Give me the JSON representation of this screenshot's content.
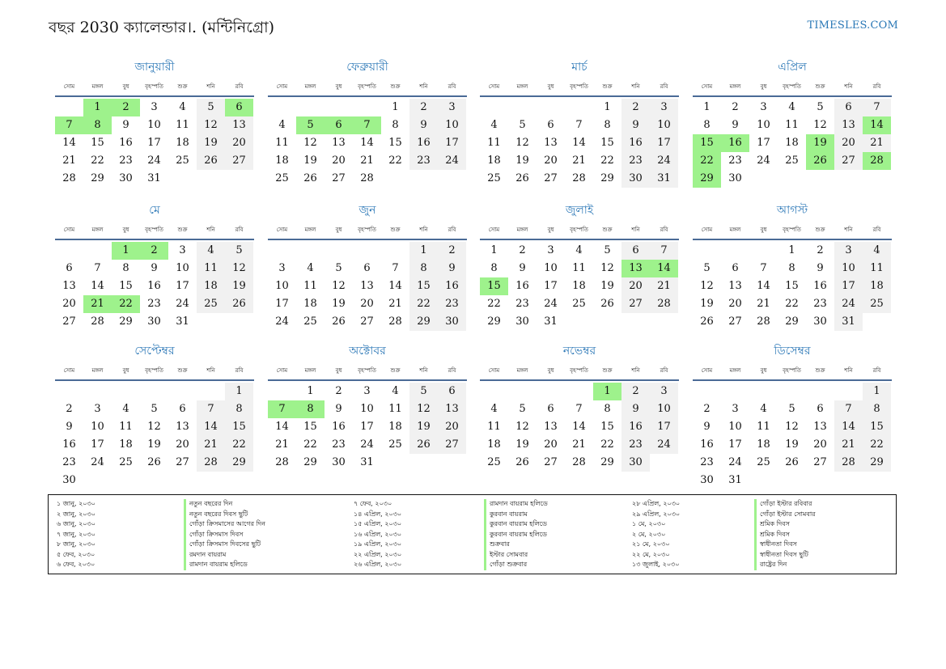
{
  "title": "বছর 2030 ক্যালেন্ডার।. (মন্টিনিগ্রো)",
  "site": "TIMESLES.COM",
  "colors": {
    "holiday": "#9ef28c",
    "weekend": "#f1f1f1",
    "accent": "#2f7ab8"
  },
  "weekdays": [
    "সোম",
    "মঙ্গল",
    "বুধ",
    "বৃহস্পতি",
    "শুক্র",
    "শনি",
    "রবি"
  ],
  "months": [
    {
      "name": "জানুয়ারী",
      "offset": 1,
      "days": 31,
      "holidays": [
        1,
        2,
        6,
        7,
        8
      ]
    },
    {
      "name": "ফেব্রুয়ারী",
      "offset": 4,
      "days": 28,
      "holidays": [
        5,
        6,
        7
      ]
    },
    {
      "name": "মার্চ",
      "offset": 4,
      "days": 31,
      "holidays": []
    },
    {
      "name": "এপ্রিল",
      "offset": 0,
      "days": 30,
      "holidays": [
        14,
        15,
        16,
        19,
        22,
        26,
        28,
        29
      ]
    },
    {
      "name": "মে",
      "offset": 2,
      "days": 31,
      "holidays": [
        1,
        2,
        21,
        22
      ]
    },
    {
      "name": "জুন",
      "offset": 5,
      "days": 30,
      "holidays": []
    },
    {
      "name": "জুলাই",
      "offset": 0,
      "days": 31,
      "holidays": [
        13,
        14,
        15
      ]
    },
    {
      "name": "আগস্ট",
      "offset": 3,
      "days": 31,
      "holidays": []
    },
    {
      "name": "সেপ্টেম্বর",
      "offset": 6,
      "days": 30,
      "holidays": []
    },
    {
      "name": "অক্টোবর",
      "offset": 1,
      "days": 31,
      "holidays": [
        7,
        8
      ]
    },
    {
      "name": "নভেম্বর",
      "offset": 4,
      "days": 30,
      "holidays": [
        1
      ]
    },
    {
      "name": "ডিসেম্বর",
      "offset": 6,
      "days": 31,
      "holidays": []
    }
  ],
  "holidays": [
    {
      "date": "১ জানু, ২০৩০",
      "name": "নতুন বছরের দিন"
    },
    {
      "date": "২ জানু, ২০৩০",
      "name": "নতুন বছরের দিবস ছুটি"
    },
    {
      "date": "৬ জানু, ২০৩০",
      "name": "গোঁড়া ক্রিসমাসের আগের দিন"
    },
    {
      "date": "৭ জানু, ২০৩০",
      "name": "গোঁড়া ক্রিসমাস দিবস"
    },
    {
      "date": "৮ জানু, ২০৩০",
      "name": "গোঁড়া ক্রিসমাস দিবসের ছুটি"
    },
    {
      "date": "৫ ফেব, ২০৩০",
      "name": "রমদান বায়রাম"
    },
    {
      "date": "৬ ফেব, ২০৩০",
      "name": "রামদান বায়রাম হলিডে"
    },
    {
      "date": "৭ ফেব, ২০৩০",
      "name": "রামদান বায়রাম হলিডে"
    },
    {
      "date": "১৪ এপ্রিল, ২০৩০",
      "name": "কুরবান বায়রাম"
    },
    {
      "date": "১৫ এপ্রিল, ২০৩০",
      "name": "কুরবান বায়রাম হলিডে"
    },
    {
      "date": "১৬ এপ্রিল, ২০৩০",
      "name": "কুরবান বায়রাম হলিডে"
    },
    {
      "date": "১৯ এপ্রিল, ২০৩০",
      "name": "শুক্রবার"
    },
    {
      "date": "২২ এপ্রিল, ২০৩০",
      "name": "ইস্টার সোমবার"
    },
    {
      "date": "২৬ এপ্রিল, ২০৩০",
      "name": "গোঁড়া শুক্রবার"
    },
    {
      "date": "২৮ এপ্রিল, ২০৩০",
      "name": "গোঁড়া ইস্টার রবিবার"
    },
    {
      "date": "২৯ এপ্রিল, ২০৩০",
      "name": "গোঁড়া ইস্টার সোমবার"
    },
    {
      "date": "১ মে, ২০৩০",
      "name": "শ্রমিক দিবস"
    },
    {
      "date": "২ মে, ২০৩০",
      "name": "শ্রমিক দিবস"
    },
    {
      "date": "২১ মে, ২০৩০",
      "name": "স্বাধীনতা দিবস"
    },
    {
      "date": "২২ মে, ২০৩০",
      "name": "স্বাধীনতা দিবস ছুটি"
    },
    {
      "date": "১৩ জুলাই, ২০৩০",
      "name": "রাষ্ট্রের দিন"
    }
  ]
}
